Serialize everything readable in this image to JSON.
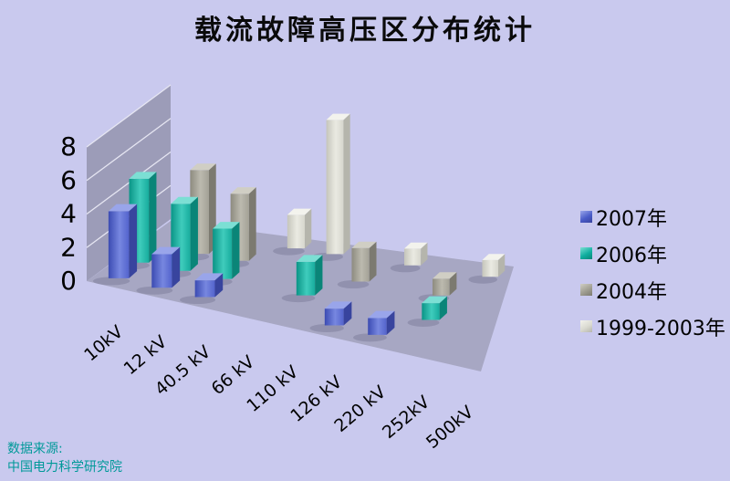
{
  "title": "载流故障高压区分布统计",
  "chart_data": {
    "type": "bar",
    "style": "3d-perspective-column",
    "title": "载流故障高压区分布统计",
    "categories": [
      "10kV",
      "12 kV",
      "40.5 kV",
      "66 kV",
      "110 kV",
      "126 kV",
      "220 kV",
      "252kV",
      "500kV"
    ],
    "series": [
      {
        "name": "2007年",
        "color": "#4A5CC8",
        "values": [
          4,
          2,
          1,
          0,
          0,
          1,
          1,
          0,
          0
        ],
        "faces": {
          "grad": [
            "#3B4BB2",
            "#7787E0",
            "#5363CC"
          ],
          "top": "#99A5EA",
          "side": "#38449E"
        }
      },
      {
        "name": "2006年",
        "color": "#10AFA0",
        "values": [
          5,
          4,
          3,
          0,
          2,
          0,
          0,
          1,
          0
        ],
        "faces": {
          "grad": [
            "#0A9486",
            "#3FCCBC",
            "#17AC9D"
          ],
          "top": "#7CDFD4",
          "side": "#0A8578"
        }
      },
      {
        "name": "2004年",
        "color": "#A09E92",
        "values": [
          0,
          5,
          4,
          0,
          0,
          2,
          0,
          1,
          0
        ],
        "faces": {
          "grad": [
            "#8D8B7F",
            "#BCBAAF",
            "#A3A196"
          ],
          "top": "#D0CEC4",
          "side": "#7C7A70"
        }
      },
      {
        "name": "1999-2003年",
        "color": "#DADAD1",
        "values": [
          0,
          0,
          0,
          2,
          8,
          0,
          1,
          0,
          1
        ],
        "faces": {
          "grad": [
            "#C5C5BB",
            "#EAEAE2",
            "#D6D6CD"
          ],
          "top": "#F3F3ED",
          "side": "#B5B5AC"
        }
      }
    ],
    "yticks": [
      0,
      2,
      4,
      6,
      8
    ],
    "ylim": [
      0,
      8
    ],
    "grid": true,
    "legend_position": "right",
    "xlabel": "",
    "ylabel": ""
  },
  "source": {
    "line1": "数据来源:",
    "line2": "中国电力科学研究院",
    "color": "#009999"
  },
  "colors": {
    "background": "#C9C9EE",
    "wall": "#9C9CB8",
    "floor": "#A7A7C3",
    "gridline": "#E6E6F2",
    "axis_text": "#000000"
  }
}
